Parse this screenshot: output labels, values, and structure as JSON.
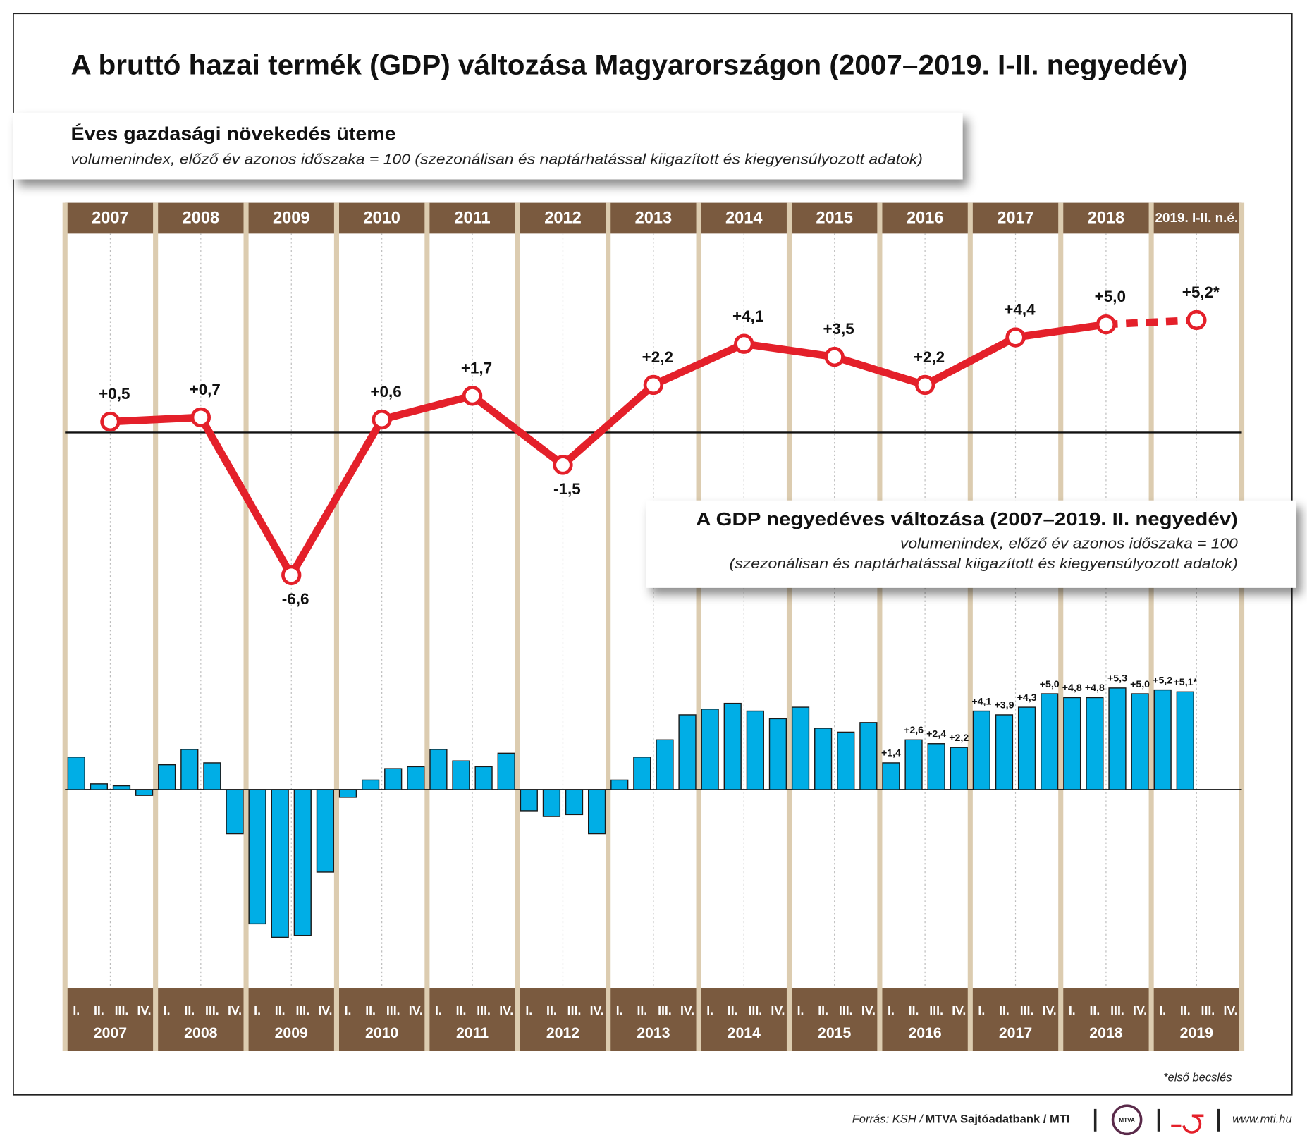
{
  "title": "A bruttó hazai termék (GDP) változása Magyarországon (2007–2019. I-II. negyedév)",
  "chart_data": [
    {
      "type": "line",
      "title": "Éves gazdasági növekedés üteme",
      "subtitle": "volumenindex, előző év azonos időszaka = 100 (szezonálisan és naptárhatással kiigazított és kiegyensúlyozott adatok)",
      "categories": [
        "2007",
        "2008",
        "2009",
        "2010",
        "2011",
        "2012",
        "2013",
        "2014",
        "2015",
        "2016",
        "2017",
        "2018",
        "2019. I-II. n.é."
      ],
      "values": [
        0.5,
        0.7,
        -6.6,
        0.6,
        1.7,
        -1.5,
        2.2,
        4.1,
        3.5,
        2.2,
        4.4,
        5.0,
        5.2
      ],
      "value_labels": [
        "+0,5",
        "+0,7",
        "-6,6",
        "+0,6",
        "+1,7",
        "-1,5",
        "+2,2",
        "+4,1",
        "+3,5",
        "+2,2",
        "+4,4",
        "+5,0",
        "+5,2*"
      ],
      "color": "#e4202a",
      "dashed_last_segment": true,
      "ylim": [
        -8,
        9.2
      ]
    },
    {
      "type": "bar",
      "title": "A GDP negyedéves változása (2007–2019. II. negyedév)",
      "subtitle": [
        "volumenindex, előző év azonos időszaka = 100",
        "(szezonálisan és naptárhatással kiigazított és kiegyensúlyozott adatok)"
      ],
      "quarters": [
        "I.",
        "II.",
        "III.",
        "IV."
      ],
      "years": [
        "2007",
        "2008",
        "2009",
        "2010",
        "2011",
        "2012",
        "2013",
        "2014",
        "2015",
        "2016",
        "2017",
        "2018",
        "2019"
      ],
      "values": [
        1.7,
        0.3,
        0.2,
        -0.3,
        1.3,
        2.1,
        1.4,
        -2.3,
        -7.0,
        -7.7,
        -7.6,
        -4.3,
        -0.4,
        0.5,
        1.1,
        1.2,
        2.1,
        1.5,
        1.2,
        1.9,
        -1.1,
        -1.4,
        -1.3,
        -2.3,
        0.5,
        1.7,
        2.6,
        3.9,
        4.2,
        4.5,
        4.1,
        3.7,
        4.3,
        3.2,
        3.0,
        3.5,
        1.4,
        2.6,
        2.4,
        2.2,
        4.1,
        3.9,
        4.3,
        5.0,
        4.8,
        4.8,
        5.3,
        5.0,
        5.2,
        5.1
      ],
      "value_labels": [
        null,
        null,
        null,
        null,
        null,
        null,
        null,
        null,
        null,
        null,
        null,
        null,
        null,
        null,
        null,
        null,
        null,
        null,
        null,
        null,
        null,
        null,
        null,
        null,
        null,
        null,
        null,
        null,
        null,
        null,
        null,
        null,
        null,
        null,
        null,
        null,
        "+1,4",
        "+2,6",
        "+2,4",
        "+2,2",
        "+4,1",
        "+3,9",
        "+4,3",
        "+5,0",
        "+4,8",
        "+4,8",
        "+5,3",
        "+5,0",
        "+5,2",
        "+5,1*"
      ],
      "color": "#00aee6",
      "ylim": [
        -8,
        6
      ]
    }
  ],
  "footnote": "*első becslés",
  "source": [
    "Forrás: KSH /",
    "MTVA Sajtóadatbank / MTI"
  ],
  "logo": "MTVA",
  "website": "www.mti.hu"
}
